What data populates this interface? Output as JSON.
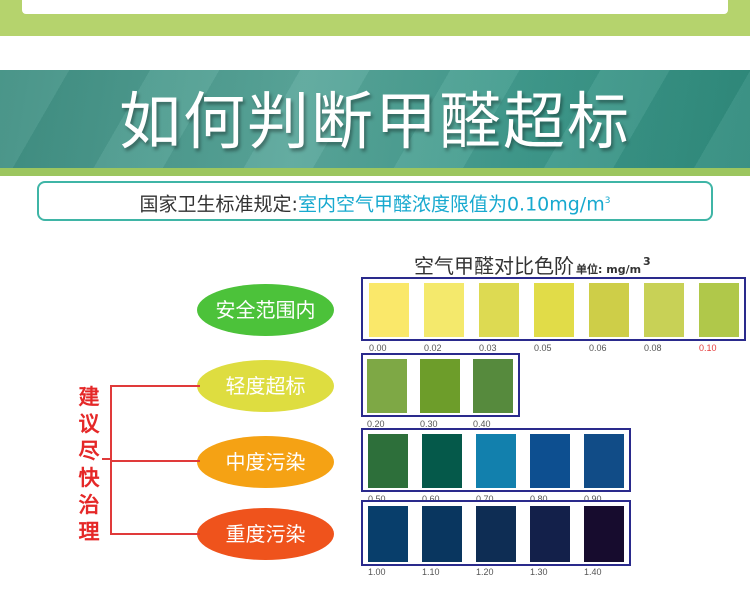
{
  "header": {
    "title": "如何判断甲醛超标",
    "standard_prefix": "国家卫生标准规定:",
    "standard_highlight": "室内空气甲醛浓度限值为0.10mg/m",
    "standard_sup": "3"
  },
  "chart": {
    "title": "空气甲醛对比色阶",
    "unit_label": "单位: mg/m",
    "unit_sup": "3"
  },
  "advice": {
    "text": "建议尽快治理"
  },
  "colors": {
    "top_band": "#b5d36d",
    "title_band": "#3f8f82",
    "accent": "#17a9cf",
    "advice_red": "#e52828",
    "row_border": "#2a2a8c"
  },
  "bands": [
    {
      "label": "安全范围内",
      "label_color": "#4cc23a",
      "values": [
        "0.00",
        "0.02",
        "0.03",
        "0.05",
        "0.06",
        "0.08",
        "0.10"
      ],
      "colors": [
        "#fae86a",
        "#f4e96c",
        "#ddda52",
        "#e1dc48",
        "#cece48",
        "#c8d156",
        "#b0c84a"
      ],
      "highlight_last": true
    },
    {
      "label": "轻度超标",
      "label_color": "#dedd40",
      "values": [
        "0.20",
        "0.30",
        "0.40"
      ],
      "colors": [
        "#7ea845",
        "#6d9d2a",
        "#568a3d"
      ],
      "highlight_last": false
    },
    {
      "label": "中度污染",
      "label_color": "#f5a214",
      "values": [
        "0.50",
        "0.60",
        "0.70",
        "0.80",
        "0.90"
      ],
      "colors": [
        "#2d6f3a",
        "#05594a",
        "#1280ad",
        "#0d4f90",
        "#114c87"
      ],
      "highlight_last": false
    },
    {
      "label": "重度污染",
      "label_color": "#ef531c",
      "values": [
        "1.00",
        "1.10",
        "1.20",
        "1.30",
        "1.40"
      ],
      "colors": [
        "#083e6b",
        "#09365f",
        "#0e2d54",
        "#13204a",
        "#170c2e"
      ],
      "highlight_last": false
    }
  ]
}
